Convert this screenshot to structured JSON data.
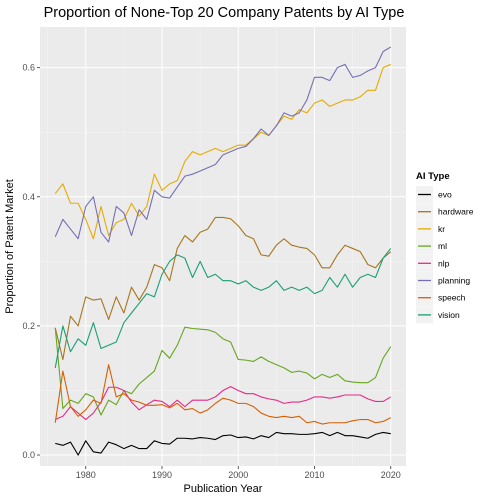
{
  "chart_data": {
    "type": "line",
    "title": "Proportion of None-Top 20 Company Patents by AI Type",
    "xlabel": "Publication Year",
    "ylabel": "Proportion of Patent Market",
    "xlim": [
      1974,
      2022
    ],
    "ylim": [
      -0.017,
      0.663
    ],
    "x_ticks": [
      1980,
      1990,
      2000,
      2010,
      2020
    ],
    "y_ticks": [
      0.0,
      0.2,
      0.4,
      0.6
    ],
    "y_tick_labels": [
      "0.0",
      "0.2",
      "0.4",
      "0.6"
    ],
    "grid": true,
    "legend": {
      "title": "AI Type",
      "position": "right"
    },
    "x": [
      1976,
      1977,
      1978,
      1979,
      1980,
      1981,
      1982,
      1983,
      1984,
      1985,
      1986,
      1987,
      1988,
      1989,
      1990,
      1991,
      1992,
      1993,
      1994,
      1995,
      1996,
      1997,
      1998,
      1999,
      2000,
      2001,
      2002,
      2003,
      2004,
      2005,
      2006,
      2007,
      2008,
      2009,
      2010,
      2011,
      2012,
      2013,
      2014,
      2015,
      2016,
      2017,
      2018,
      2019,
      2020
    ],
    "series": [
      {
        "name": "evo",
        "color": "#000000",
        "values": [
          0.018,
          0.015,
          0.02,
          0.0,
          0.022,
          0.005,
          0.003,
          0.02,
          0.016,
          0.01,
          0.015,
          0.01,
          0.01,
          0.022,
          0.018,
          0.017,
          0.026,
          0.026,
          0.025,
          0.027,
          0.026,
          0.024,
          0.03,
          0.031,
          0.027,
          0.028,
          0.025,
          0.03,
          0.027,
          0.035,
          0.033,
          0.033,
          0.032,
          0.032,
          0.033,
          0.035,
          0.03,
          0.035,
          0.03,
          0.03,
          0.028,
          0.026,
          0.032,
          0.035,
          0.033
        ]
      },
      {
        "name": "hardware",
        "color": "#A6761D",
        "values": [
          0.197,
          0.148,
          0.215,
          0.2,
          0.245,
          0.24,
          0.242,
          0.21,
          0.245,
          0.22,
          0.26,
          0.24,
          0.26,
          0.295,
          0.29,
          0.27,
          0.32,
          0.34,
          0.33,
          0.345,
          0.35,
          0.368,
          0.368,
          0.366,
          0.355,
          0.34,
          0.335,
          0.31,
          0.308,
          0.325,
          0.335,
          0.325,
          0.322,
          0.32,
          0.31,
          0.29,
          0.29,
          0.31,
          0.325,
          0.32,
          0.315,
          0.295,
          0.29,
          0.305,
          0.315
        ]
      },
      {
        "name": "kr",
        "color": "#E6AB02",
        "values": [
          0.405,
          0.42,
          0.39,
          0.39,
          0.365,
          0.335,
          0.385,
          0.34,
          0.36,
          0.365,
          0.39,
          0.37,
          0.385,
          0.435,
          0.41,
          0.42,
          0.425,
          0.455,
          0.47,
          0.465,
          0.47,
          0.475,
          0.47,
          0.475,
          0.48,
          0.48,
          0.49,
          0.5,
          0.495,
          0.51,
          0.525,
          0.52,
          0.535,
          0.53,
          0.545,
          0.55,
          0.54,
          0.545,
          0.55,
          0.55,
          0.555,
          0.565,
          0.565,
          0.6,
          0.605
        ]
      },
      {
        "name": "ml",
        "color": "#66A61E",
        "values": [
          0.197,
          0.072,
          0.085,
          0.08,
          0.095,
          0.09,
          0.062,
          0.085,
          0.078,
          0.1,
          0.095,
          0.11,
          0.12,
          0.13,
          0.162,
          0.15,
          0.17,
          0.198,
          0.196,
          0.195,
          0.194,
          0.19,
          0.18,
          0.175,
          0.148,
          0.147,
          0.145,
          0.152,
          0.145,
          0.14,
          0.135,
          0.128,
          0.13,
          0.127,
          0.118,
          0.125,
          0.12,
          0.125,
          0.115,
          0.113,
          0.112,
          0.112,
          0.12,
          0.15,
          0.168
        ]
      },
      {
        "name": "nlp",
        "color": "#E7298A",
        "values": [
          0.055,
          0.06,
          0.075,
          0.065,
          0.055,
          0.065,
          0.082,
          0.105,
          0.105,
          0.1,
          0.082,
          0.07,
          0.078,
          0.085,
          0.083,
          0.075,
          0.085,
          0.075,
          0.085,
          0.085,
          0.085,
          0.09,
          0.1,
          0.106,
          0.1,
          0.095,
          0.095,
          0.09,
          0.087,
          0.085,
          0.08,
          0.082,
          0.082,
          0.085,
          0.09,
          0.09,
          0.088,
          0.09,
          0.093,
          0.093,
          0.093,
          0.087,
          0.083,
          0.083,
          0.09
        ]
      },
      {
        "name": "planning",
        "color": "#7570B3",
        "values": [
          0.338,
          0.365,
          0.35,
          0.335,
          0.385,
          0.4,
          0.345,
          0.33,
          0.385,
          0.375,
          0.34,
          0.38,
          0.365,
          0.41,
          0.4,
          0.398,
          0.415,
          0.432,
          0.435,
          0.44,
          0.445,
          0.45,
          0.465,
          0.47,
          0.475,
          0.478,
          0.49,
          0.505,
          0.495,
          0.51,
          0.53,
          0.525,
          0.53,
          0.55,
          0.585,
          0.585,
          0.58,
          0.6,
          0.605,
          0.585,
          0.588,
          0.595,
          0.6,
          0.625,
          0.632
        ]
      },
      {
        "name": "speech",
        "color": "#D95F02",
        "values": [
          0.05,
          0.13,
          0.075,
          0.06,
          0.07,
          0.085,
          0.08,
          0.14,
          0.09,
          0.095,
          0.085,
          0.082,
          0.077,
          0.077,
          0.078,
          0.073,
          0.08,
          0.07,
          0.072,
          0.065,
          0.07,
          0.08,
          0.088,
          0.085,
          0.08,
          0.08,
          0.075,
          0.065,
          0.06,
          0.058,
          0.06,
          0.058,
          0.06,
          0.05,
          0.052,
          0.048,
          0.05,
          0.05,
          0.05,
          0.053,
          0.055,
          0.055,
          0.05,
          0.052,
          0.058
        ]
      },
      {
        "name": "vision",
        "color": "#1B9E77",
        "values": [
          0.135,
          0.2,
          0.16,
          0.18,
          0.17,
          0.205,
          0.165,
          0.17,
          0.175,
          0.205,
          0.22,
          0.235,
          0.25,
          0.245,
          0.28,
          0.3,
          0.31,
          0.305,
          0.275,
          0.3,
          0.275,
          0.28,
          0.27,
          0.27,
          0.265,
          0.27,
          0.26,
          0.255,
          0.26,
          0.27,
          0.255,
          0.26,
          0.255,
          0.26,
          0.25,
          0.255,
          0.275,
          0.26,
          0.28,
          0.26,
          0.275,
          0.28,
          0.275,
          0.305,
          0.32
        ]
      }
    ]
  }
}
